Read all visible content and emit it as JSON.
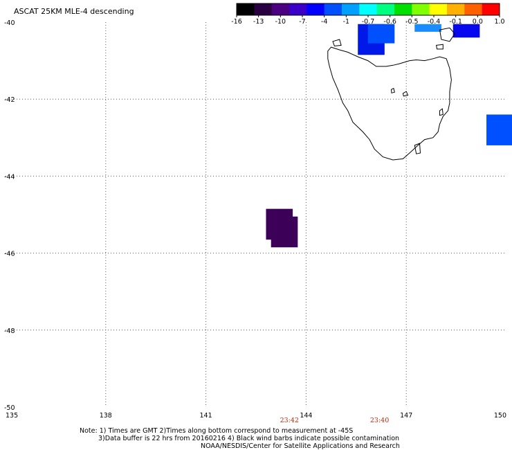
{
  "title": "ASCAT 25KM MLE-4 descending",
  "colorbar": {
    "labels": [
      "-16",
      "-13",
      "-10",
      "-7",
      "-4",
      "-1",
      "-0.7",
      "-0.6",
      "-0.5",
      "-0.4",
      "-0.1",
      "0.0",
      "1.0"
    ],
    "colors": [
      "#000000",
      "#2a0040",
      "#4b0082",
      "#3a00c8",
      "#0000ff",
      "#0050ff",
      "#00a0ff",
      "#00ffff",
      "#00ff80",
      "#00e000",
      "#80ff00",
      "#ffff00",
      "#ffb000",
      "#ff6000",
      "#ff0000"
    ]
  },
  "axes": {
    "lon_min": 135,
    "lon_max": 150,
    "lat_min": -50,
    "lat_max": -40,
    "x_ticks": [
      {
        "v": 135,
        "label": "135"
      },
      {
        "v": 138,
        "label": "138"
      },
      {
        "v": 141,
        "label": "141"
      },
      {
        "v": 144,
        "label": "144"
      },
      {
        "v": 147,
        "label": "147"
      },
      {
        "v": 150,
        "label": "150"
      }
    ],
    "y_ticks": [
      {
        "v": -40,
        "label": "-40"
      },
      {
        "v": -42,
        "label": "-42"
      },
      {
        "v": -44,
        "label": "-44"
      },
      {
        "v": -46,
        "label": "-46"
      },
      {
        "v": -48,
        "label": "-48"
      },
      {
        "v": -50,
        "label": "-50"
      }
    ]
  },
  "times": [
    {
      "lon": 143.5,
      "label": "23:42"
    },
    {
      "lon": 146.2,
      "label": "23:40"
    }
  ],
  "cells": [
    {
      "lon0": 145.55,
      "lon1": 146.35,
      "lat0": -40.85,
      "lat1": -40.05,
      "color": "#0018e8"
    },
    {
      "lon0": 145.85,
      "lon1": 146.65,
      "lat0": -40.55,
      "lat1": -40.05,
      "color": "#0050ff"
    },
    {
      "lon0": 147.25,
      "lon1": 148.05,
      "lat0": -40.25,
      "lat1": -40.05,
      "color": "#1a8cff"
    },
    {
      "lon0": 148.4,
      "lon1": 149.2,
      "lat0": -40.4,
      "lat1": -40.05,
      "color": "#0808ee"
    },
    {
      "lon0": 149.4,
      "lon1": 150.25,
      "lat0": -43.2,
      "lat1": -42.4,
      "color": "#0050ff"
    },
    {
      "lon0": 142.8,
      "lon1": 143.6,
      "lat0": -45.65,
      "lat1": -44.85,
      "color": "#3c0058"
    },
    {
      "lon0": 142.95,
      "lon1": 143.75,
      "lat0": -45.85,
      "lat1": -45.05,
      "color": "#3c0058"
    }
  ],
  "coast": [
    [
      144.65,
      -40.75
    ],
    [
      144.75,
      -40.65
    ],
    [
      145.0,
      -40.72
    ],
    [
      145.25,
      -40.78
    ],
    [
      145.55,
      -40.9
    ],
    [
      145.85,
      -41.0
    ],
    [
      146.1,
      -41.15
    ],
    [
      146.4,
      -41.15
    ],
    [
      146.6,
      -41.12
    ],
    [
      146.8,
      -41.08
    ],
    [
      147.1,
      -41.0
    ],
    [
      147.3,
      -40.98
    ],
    [
      147.55,
      -41.0
    ],
    [
      147.8,
      -40.95
    ],
    [
      148.0,
      -40.9
    ],
    [
      148.2,
      -40.95
    ],
    [
      148.3,
      -41.2
    ],
    [
      148.35,
      -41.5
    ],
    [
      148.3,
      -41.8
    ],
    [
      148.3,
      -42.1
    ],
    [
      148.25,
      -42.3
    ],
    [
      148.1,
      -42.45
    ],
    [
      148.0,
      -42.65
    ],
    [
      147.95,
      -42.85
    ],
    [
      147.8,
      -43.0
    ],
    [
      147.55,
      -43.05
    ],
    [
      147.35,
      -43.2
    ],
    [
      147.1,
      -43.4
    ],
    [
      146.9,
      -43.55
    ],
    [
      146.6,
      -43.58
    ],
    [
      146.3,
      -43.5
    ],
    [
      146.05,
      -43.3
    ],
    [
      145.9,
      -43.05
    ],
    [
      145.7,
      -42.85
    ],
    [
      145.4,
      -42.6
    ],
    [
      145.25,
      -42.3
    ],
    [
      145.1,
      -42.1
    ],
    [
      144.95,
      -41.75
    ],
    [
      144.8,
      -41.45
    ],
    [
      144.7,
      -41.15
    ],
    [
      144.65,
      -40.95
    ],
    [
      144.65,
      -40.75
    ]
  ],
  "islands": [
    [
      [
        144.8,
        -40.5
      ],
      [
        145.0,
        -40.45
      ],
      [
        145.05,
        -40.6
      ],
      [
        144.85,
        -40.62
      ],
      [
        144.8,
        -40.5
      ]
    ],
    [
      [
        148.0,
        -40.2
      ],
      [
        148.3,
        -40.15
      ],
      [
        148.45,
        -40.3
      ],
      [
        148.3,
        -40.5
      ],
      [
        148.05,
        -40.45
      ],
      [
        148.0,
        -40.2
      ]
    ],
    [
      [
        147.9,
        -40.6
      ],
      [
        148.1,
        -40.58
      ],
      [
        148.1,
        -40.7
      ],
      [
        147.92,
        -40.7
      ],
      [
        147.9,
        -40.6
      ]
    ],
    [
      [
        148.0,
        -42.3
      ],
      [
        148.08,
        -42.25
      ],
      [
        148.1,
        -42.4
      ],
      [
        148.0,
        -42.42
      ],
      [
        148.0,
        -42.3
      ]
    ],
    [
      [
        147.25,
        -43.2
      ],
      [
        147.4,
        -43.15
      ],
      [
        147.42,
        -43.4
      ],
      [
        147.3,
        -43.42
      ],
      [
        147.25,
        -43.2
      ]
    ],
    [
      [
        146.9,
        -41.85
      ],
      [
        147.0,
        -41.8
      ],
      [
        147.05,
        -41.9
      ],
      [
        146.92,
        -41.92
      ],
      [
        146.9,
        -41.85
      ]
    ],
    [
      [
        146.55,
        -41.75
      ],
      [
        146.62,
        -41.72
      ],
      [
        146.65,
        -41.82
      ],
      [
        146.56,
        -41.84
      ],
      [
        146.55,
        -41.75
      ]
    ]
  ],
  "notes": {
    "line1": "Note: 1) Times are GMT 2)Times along bottom correspond to measurement at -45S",
    "line2": "3)Data buffer is 22 hrs from 20160216 4) Black wind barbs indicate possible contamination",
    "line3": "NOAA/NESDIS/Center for Satellite Applications and Research"
  },
  "time_label_color": "#cc2200"
}
